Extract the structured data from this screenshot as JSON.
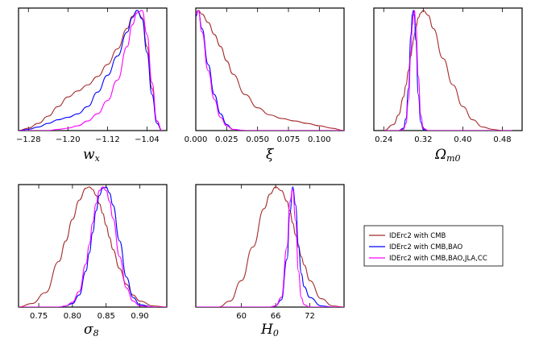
{
  "colors": {
    "cmb": "#a52a2a",
    "cmb_bao": "#0000ff",
    "full": "#ff00ff"
  },
  "legend": {
    "entries": [
      {
        "label": "IDErc2 with CMB",
        "color": "#a52a2a"
      },
      {
        "label": "IDErc2 with CMB,BAO",
        "color": "#0000ff"
      },
      {
        "label": "IDErc2 with CMB,BAO,JLA,CC",
        "color": "#ff00ff"
      }
    ]
  },
  "chart_data": [
    {
      "type": "line",
      "id": "wx",
      "xlabel": {
        "main": "w",
        "sub": "x"
      },
      "xlim": [
        -1.3,
        -1.0
      ],
      "ylim": [
        0,
        1.02
      ],
      "ticks": [
        -1.28,
        -1.2,
        -1.12,
        -1.04
      ],
      "tick_labels": [
        "−1.28",
        "−1.20",
        "−1.12",
        "−1.04"
      ],
      "x": [
        -1.3,
        -1.28,
        -1.26,
        -1.24,
        -1.22,
        -1.2,
        -1.18,
        -1.16,
        -1.14,
        -1.12,
        -1.1,
        -1.08,
        -1.07,
        -1.06,
        -1.05,
        -1.04,
        -1.03,
        -1.02,
        -1.01
      ],
      "series": [
        {
          "name": "IDErc2 with CMB",
          "color": "#a52a2a",
          "values": [
            0.0,
            0.02,
            0.06,
            0.12,
            0.2,
            0.28,
            0.33,
            0.38,
            0.45,
            0.55,
            0.68,
            0.85,
            0.95,
            1.0,
            0.94,
            0.7,
            0.35,
            0.08,
            0.0
          ]
        },
        {
          "name": "IDErc2 with CMB,BAO",
          "color": "#0000ff",
          "values": [
            0.0,
            0.01,
            0.03,
            0.06,
            0.09,
            0.11,
            0.14,
            0.2,
            0.32,
            0.46,
            0.62,
            0.82,
            0.94,
            1.0,
            0.93,
            0.65,
            0.3,
            0.06,
            0.0
          ]
        },
        {
          "name": "IDErc2 with CMB,BAO,JLA,CC",
          "color": "#ff00ff",
          "values": [
            0.0,
            0.0,
            0.0,
            0.0,
            0.01,
            0.02,
            0.04,
            0.08,
            0.14,
            0.25,
            0.42,
            0.7,
            0.88,
            0.98,
            1.0,
            0.8,
            0.4,
            0.08,
            0.0
          ]
        }
      ]
    },
    {
      "type": "line",
      "id": "xi",
      "xlabel": {
        "main": "ξ",
        "sub": ""
      },
      "xlim": [
        0.0,
        0.12
      ],
      "ylim": [
        0,
        1.02
      ],
      "ticks": [
        0.0,
        0.025,
        0.05,
        0.075,
        0.1
      ],
      "tick_labels": [
        "0.000",
        "0.025",
        "0.050",
        "0.075",
        "0.100"
      ],
      "x": [
        0.0,
        0.002,
        0.005,
        0.01,
        0.015,
        0.02,
        0.025,
        0.03,
        0.04,
        0.05,
        0.06,
        0.07,
        0.08,
        0.09,
        0.1,
        0.11,
        0.12
      ],
      "series": [
        {
          "name": "IDErc2 with CMB",
          "color": "#a52a2a",
          "values": [
            0.98,
            1.0,
            0.97,
            0.9,
            0.8,
            0.7,
            0.58,
            0.47,
            0.3,
            0.19,
            0.13,
            0.1,
            0.08,
            0.06,
            0.04,
            0.02,
            0.0
          ]
        },
        {
          "name": "IDErc2 with CMB,BAO",
          "color": "#0000ff",
          "values": [
            0.95,
            1.0,
            0.85,
            0.55,
            0.3,
            0.14,
            0.05,
            0.01,
            0.0,
            0.0,
            0.0,
            0.0,
            0.0,
            0.0,
            0.0,
            0.0,
            0.0
          ]
        },
        {
          "name": "IDErc2 with CMB,BAO,JLA,CC",
          "color": "#ff00ff",
          "values": [
            0.97,
            1.0,
            0.82,
            0.5,
            0.26,
            0.11,
            0.04,
            0.01,
            0.0,
            0.0,
            0.0,
            0.0,
            0.0,
            0.0,
            0.0,
            0.0,
            0.0
          ]
        }
      ]
    },
    {
      "type": "line",
      "id": "omega",
      "xlabel": {
        "main": "Ω",
        "sub": "m0"
      },
      "xlim": [
        0.22,
        0.52
      ],
      "ylim": [
        0,
        1.02
      ],
      "ticks": [
        0.24,
        0.32,
        0.4,
        0.48
      ],
      "tick_labels": [
        "0.24",
        "0.32",
        "0.40",
        "0.48"
      ],
      "x": [
        0.24,
        0.26,
        0.27,
        0.28,
        0.285,
        0.29,
        0.295,
        0.298,
        0.3,
        0.302,
        0.305,
        0.31,
        0.315,
        0.32,
        0.33,
        0.34,
        0.36,
        0.38,
        0.4,
        0.42,
        0.44,
        0.46,
        0.48,
        0.5
      ],
      "series": [
        {
          "name": "IDErc2 with CMB",
          "color": "#a52a2a",
          "values": [
            0.0,
            0.05,
            0.13,
            0.28,
            0.38,
            0.5,
            0.62,
            0.7,
            0.75,
            0.8,
            0.86,
            0.94,
            0.98,
            1.0,
            0.96,
            0.85,
            0.6,
            0.38,
            0.2,
            0.09,
            0.03,
            0.01,
            0.0,
            0.0
          ]
        },
        {
          "name": "IDErc2 with CMB,BAO",
          "color": "#0000ff",
          "values": [
            0.0,
            0.0,
            0.0,
            0.02,
            0.1,
            0.35,
            0.8,
            0.97,
            1.0,
            0.95,
            0.75,
            0.3,
            0.07,
            0.01,
            0.0,
            0.0,
            0.0,
            0.0,
            0.0,
            0.0,
            0.0,
            0.0,
            0.0,
            0.0
          ]
        },
        {
          "name": "IDErc2 with CMB,BAO,JLA,CC",
          "color": "#ff00ff",
          "values": [
            0.0,
            0.0,
            0.0,
            0.01,
            0.06,
            0.25,
            0.65,
            0.88,
            0.97,
            1.0,
            0.88,
            0.45,
            0.13,
            0.02,
            0.0,
            0.0,
            0.0,
            0.0,
            0.0,
            0.0,
            0.0,
            0.0,
            0.0,
            0.0
          ]
        }
      ]
    },
    {
      "type": "line",
      "id": "sigma8",
      "xlabel": {
        "main": "σ",
        "sub": "8"
      },
      "xlim": [
        0.72,
        0.94
      ],
      "ylim": [
        0,
        1.02
      ],
      "ticks": [
        0.75,
        0.8,
        0.85,
        0.9
      ],
      "tick_labels": [
        "0.75",
        "0.80",
        "0.85",
        "0.90"
      ],
      "x": [
        0.72,
        0.74,
        0.76,
        0.78,
        0.79,
        0.8,
        0.81,
        0.82,
        0.825,
        0.83,
        0.835,
        0.84,
        0.845,
        0.85,
        0.855,
        0.86,
        0.87,
        0.88,
        0.89,
        0.9,
        0.92,
        0.94
      ],
      "series": [
        {
          "name": "IDErc2 with CMB",
          "color": "#a52a2a",
          "values": [
            0.0,
            0.03,
            0.12,
            0.38,
            0.55,
            0.73,
            0.89,
            0.99,
            1.0,
            0.98,
            0.93,
            0.86,
            0.78,
            0.68,
            0.58,
            0.48,
            0.32,
            0.19,
            0.1,
            0.05,
            0.01,
            0.0
          ]
        },
        {
          "name": "IDErc2 with CMB,BAO",
          "color": "#0000ff",
          "values": [
            0.0,
            0.0,
            0.0,
            0.0,
            0.01,
            0.03,
            0.1,
            0.3,
            0.45,
            0.62,
            0.8,
            0.93,
            0.99,
            1.0,
            0.95,
            0.85,
            0.55,
            0.25,
            0.08,
            0.02,
            0.0,
            0.0
          ]
        },
        {
          "name": "IDErc2 with CMB,BAO,JLA,CC",
          "color": "#ff00ff",
          "values": [
            0.0,
            0.0,
            0.0,
            0.0,
            0.01,
            0.04,
            0.13,
            0.36,
            0.52,
            0.7,
            0.86,
            0.97,
            1.0,
            0.97,
            0.88,
            0.74,
            0.42,
            0.16,
            0.05,
            0.01,
            0.0,
            0.0
          ]
        }
      ]
    },
    {
      "type": "line",
      "id": "h0",
      "xlabel": {
        "main": "H",
        "sub": "0"
      },
      "xlim": [
        52.0,
        78.0
      ],
      "ylim": [
        0,
        1.02
      ],
      "ticks": [
        60,
        66,
        72
      ],
      "tick_labels": [
        "60",
        "66",
        "72"
      ],
      "x": [
        52.0,
        54.0,
        56.0,
        58.0,
        60.0,
        62.0,
        64.0,
        65.0,
        66.0,
        67.0,
        68.0,
        68.5,
        69.0,
        69.5,
        70.0,
        70.5,
        71.0,
        72.0,
        74.0,
        76.0,
        78.0
      ],
      "series": [
        {
          "name": "IDErc2 with CMB",
          "color": "#a52a2a",
          "values": [
            0.0,
            0.0,
            0.0,
            0.05,
            0.22,
            0.5,
            0.82,
            0.94,
            1.0,
            0.97,
            0.88,
            0.8,
            0.7,
            0.6,
            0.5,
            0.42,
            0.35,
            0.22,
            0.07,
            0.01,
            0.0
          ]
        },
        {
          "name": "IDErc2 with CMB,BAO",
          "color": "#0000ff",
          "values": [
            0.0,
            0.0,
            0.0,
            0.0,
            0.0,
            0.0,
            0.0,
            0.0,
            0.01,
            0.06,
            0.4,
            0.78,
            1.0,
            0.85,
            0.52,
            0.28,
            0.17,
            0.08,
            0.01,
            0.0,
            0.0
          ]
        },
        {
          "name": "IDErc2 with CMB,BAO,JLA,CC",
          "color": "#ff00ff",
          "values": [
            0.0,
            0.0,
            0.0,
            0.0,
            0.0,
            0.0,
            0.0,
            0.0,
            0.01,
            0.08,
            0.5,
            0.88,
            0.98,
            0.72,
            0.3,
            0.08,
            0.02,
            0.0,
            0.0,
            0.0,
            0.0
          ]
        }
      ]
    }
  ]
}
